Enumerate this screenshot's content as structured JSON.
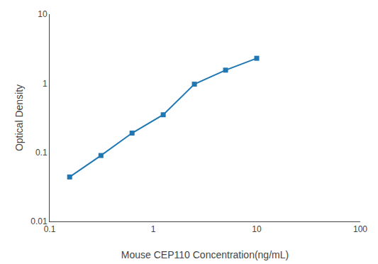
{
  "chart_data": {
    "type": "line",
    "x": [
      0.156,
      0.313,
      0.625,
      1.25,
      2.5,
      5.0,
      10.0
    ],
    "values": [
      0.044,
      0.09,
      0.19,
      0.35,
      0.97,
      1.55,
      2.3
    ],
    "xlabel": "Mouse CEP110 Concentration(ng/mL)",
    "ylabel": "Optical Density",
    "log": true,
    "xlim": [
      0.1,
      100
    ],
    "ylim": [
      0.01,
      10
    ],
    "xticks": [
      0.1,
      1,
      10,
      100
    ],
    "yticks": [
      0.01,
      0.1,
      1,
      10
    ],
    "marker": "square",
    "grid": false
  }
}
